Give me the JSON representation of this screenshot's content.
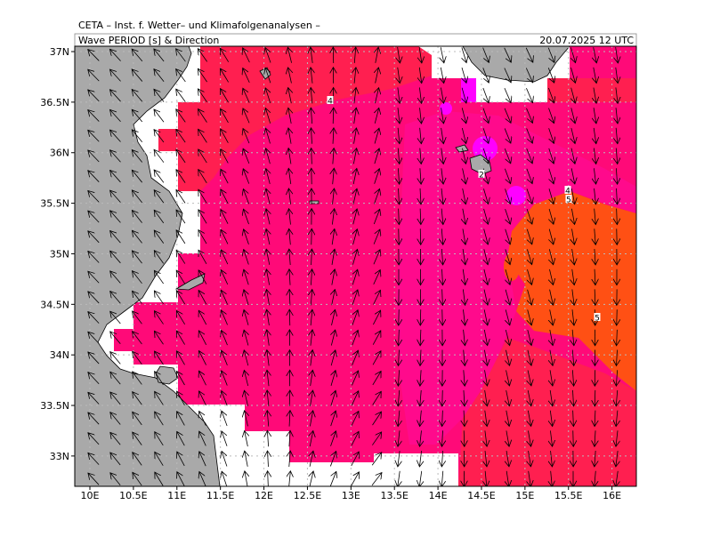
{
  "header": {
    "institute": "CETA – Inst. f. Wetter– und Klimafolgenanalysen –",
    "product": "Wave PERIOD [s] & Direction",
    "valid_time": "20.07.2025 12 UTC"
  },
  "map": {
    "xlim": [
      9.826,
      16.28
    ],
    "ylim": [
      32.7,
      37.053
    ],
    "xticks": [
      {
        "value": 10,
        "label": "10E"
      },
      {
        "value": 10.5,
        "label": "10.5E"
      },
      {
        "value": 11,
        "label": "11E"
      },
      {
        "value": 11.5,
        "label": "11.5E"
      },
      {
        "value": 12,
        "label": "12E"
      },
      {
        "value": 12.5,
        "label": "12.5E"
      },
      {
        "value": 13,
        "label": "13E"
      },
      {
        "value": 13.5,
        "label": "13.5E"
      },
      {
        "value": 14,
        "label": "14E"
      },
      {
        "value": 14.5,
        "label": "14.5E"
      },
      {
        "value": 15,
        "label": "15E"
      },
      {
        "value": 15.5,
        "label": "15.5E"
      },
      {
        "value": 16,
        "label": "16E"
      }
    ],
    "yticks": [
      {
        "value": 33,
        "label": "33N"
      },
      {
        "value": 33.5,
        "label": "33.5N"
      },
      {
        "value": 34,
        "label": "34N"
      },
      {
        "value": 34.5,
        "label": "34.5N"
      },
      {
        "value": 35,
        "label": "35N"
      },
      {
        "value": 35.5,
        "label": "35.5N"
      },
      {
        "value": 36,
        "label": "36N"
      },
      {
        "value": 36.5,
        "label": "36.5N"
      },
      {
        "value": 37,
        "label": "37N"
      }
    ],
    "contour_labels": [
      "4",
      "2",
      "4",
      "5",
      "5"
    ]
  }
}
